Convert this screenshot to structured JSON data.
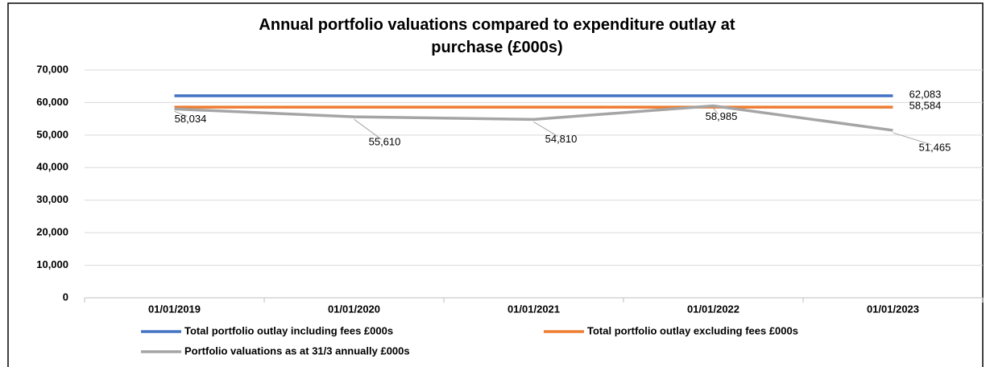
{
  "chart_data": {
    "type": "line",
    "title": "Annual portfolio valuations compared to expenditure outlay at purchase (£000s)",
    "categories": [
      "01/01/2019",
      "01/01/2020",
      "01/01/2021",
      "01/01/2022",
      "01/01/2023"
    ],
    "series": [
      {
        "name": "Total portfolio outlay including fees £000s",
        "color": "#4472c4",
        "values": [
          62083,
          62083,
          62083,
          62083,
          62083
        ],
        "value_labels": [
          null,
          null,
          null,
          null,
          "62,083"
        ]
      },
      {
        "name": "Total portfolio outlay excluding fees £000s",
        "color": "#ed7d31",
        "values": [
          58584,
          58584,
          58584,
          58584,
          58584
        ],
        "value_labels": [
          null,
          null,
          null,
          null,
          "58,584"
        ]
      },
      {
        "name": "Portfolio valuations as at 31/3 annually £000s",
        "color": "#a5a5a5",
        "values": [
          58034,
          55610,
          54810,
          58985,
          51465
        ],
        "value_labels": [
          "58,034",
          "55,610",
          "54,810",
          "58,985",
          "51,465"
        ]
      }
    ],
    "ylim": [
      0,
      70000
    ],
    "yticks": [
      0,
      {
        "value": 10000,
        "label": "10,000"
      },
      {
        "value": 20000,
        "label": "20,000"
      },
      {
        "value": 30000,
        "label": "30,000"
      },
      {
        "value": 40000,
        "label": "40,000"
      },
      {
        "value": 50000,
        "label": "50,000"
      },
      {
        "value": 60000,
        "label": "60,000"
      },
      {
        "value": 70000,
        "label": "70,000"
      }
    ],
    "grid": true
  }
}
